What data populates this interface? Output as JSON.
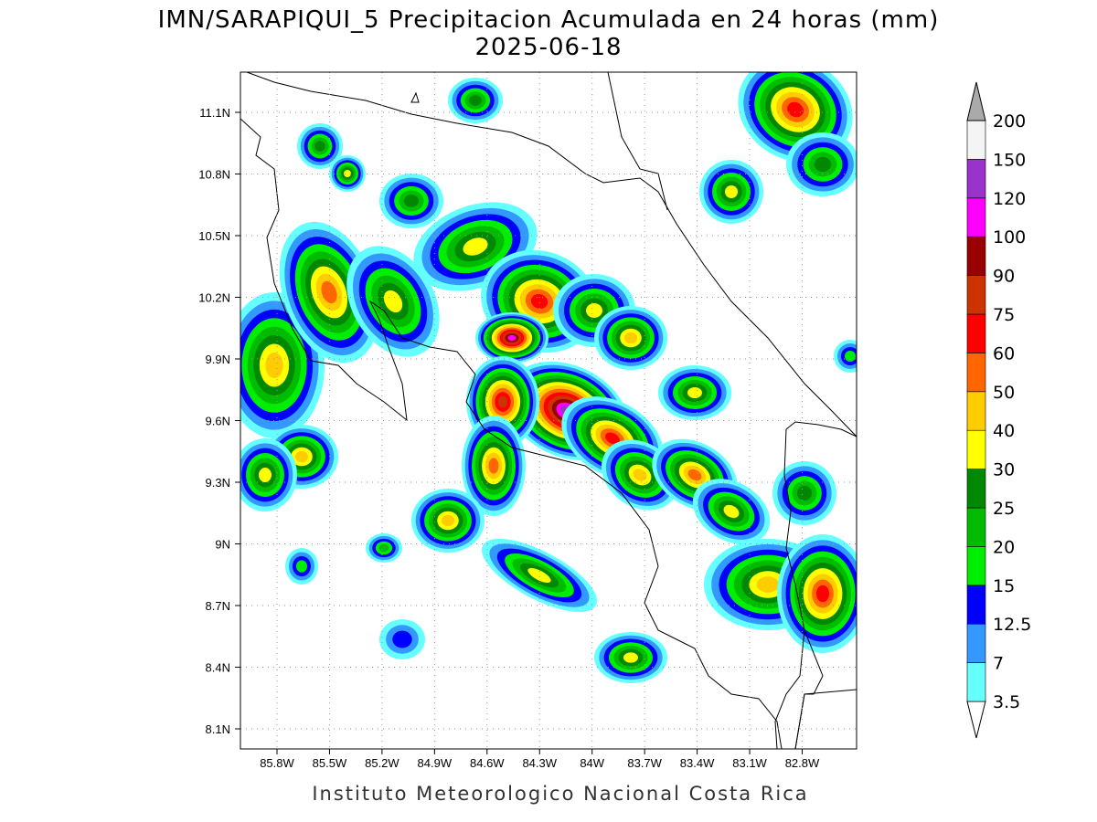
{
  "title": "IMN/SARAPIQUI_5 Precipitacion Acumulada en 24 horas (mm)",
  "subtitle": "2025-06-18",
  "lat_labels": [
    "11.1N",
    "10.8N",
    "10.5N",
    "10.2N",
    "9.9N",
    "9.6N",
    "9.3N",
    "9N",
    "8.7N",
    "8.4N",
    "8.1N"
  ],
  "lon_labels": [
    "85.8W",
    "85.5W",
    "85.2W",
    "84.9W",
    "84.6W",
    "84.3W",
    "84W",
    "83.7W",
    "83.4W",
    "83.1W",
    "82.8W"
  ],
  "colorbar": {
    "labels": [
      "3.5",
      "7",
      "12.5",
      "15",
      "20",
      "25",
      "30",
      "40",
      "50",
      "60",
      "75",
      "90",
      "100",
      "120",
      "150",
      "200"
    ],
    "colors": [
      "#66ffff",
      "#3399ff",
      "#0000ff",
      "#00ee00",
      "#00bb00",
      "#008800",
      "#ffff00",
      "#ffcc00",
      "#ff6600",
      "#ff0000",
      "#cc3300",
      "#990000",
      "#ff00ff",
      "#9933cc",
      "#f4f4f4"
    ],
    "under_color": "#ffffff",
    "over_color": "#aaaaaa"
  },
  "footer": "Instituto Meteorologico Nacional Costa Rica"
}
